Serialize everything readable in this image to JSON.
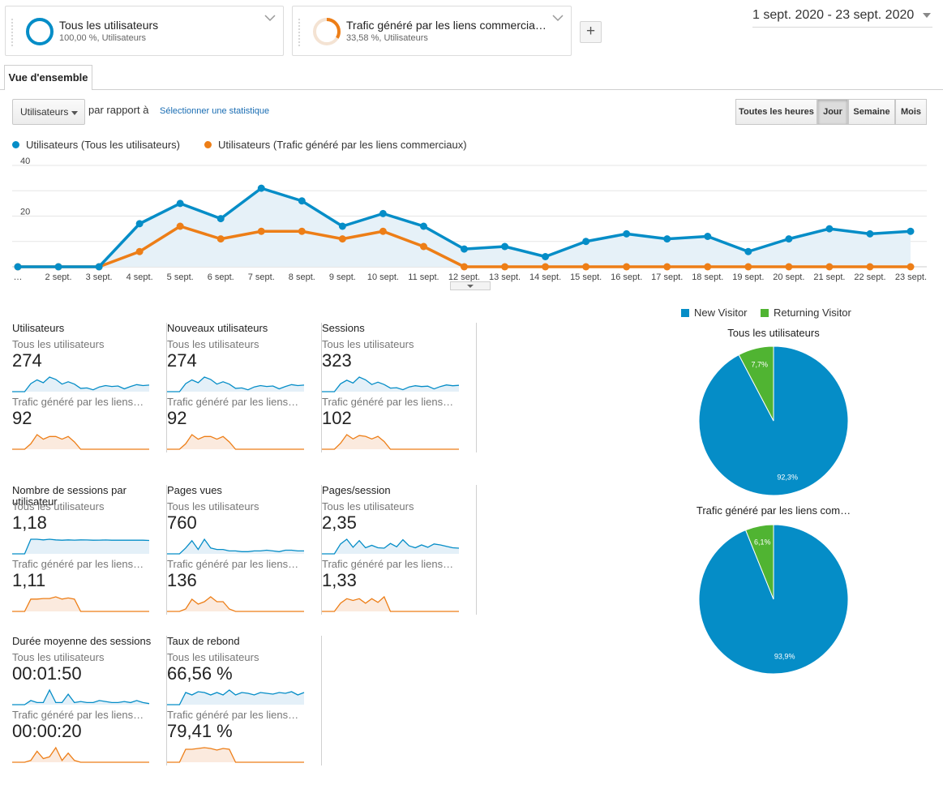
{
  "segments": [
    {
      "title": "Tous les utilisateurs",
      "subtitle": "100,00 %, Utilisateurs",
      "color": "#058dc7",
      "fraction": 1.0
    },
    {
      "title": "Trafic généré par les liens commercia…",
      "subtitle": "33,58 %, Utilisateurs",
      "color": "#ed7e17",
      "fraction": 0.3358
    }
  ],
  "add_segment_label": "+",
  "date_range": "1 sept. 2020 - 23 sept. 2020",
  "tab": {
    "label": "Vue d'ensemble"
  },
  "controls": {
    "metric": "Utilisateurs",
    "vs_label": "par rapport à",
    "select_stat": "Sélectionner une statistique",
    "granularity": [
      {
        "label": "Toutes les heures",
        "active": false
      },
      {
        "label": "Jour",
        "active": true
      },
      {
        "label": "Semaine",
        "active": false
      },
      {
        "label": "Mois",
        "active": false
      }
    ]
  },
  "colors": {
    "blue": "#058dc7",
    "orange": "#ed7e17",
    "green": "#50b432"
  },
  "chart_data": {
    "type": "line",
    "x": [
      "…",
      "2 sept.",
      "3 sept.",
      "4 sept.",
      "5 sept.",
      "6 sept.",
      "7 sept.",
      "8 sept.",
      "9 sept.",
      "10 sept.",
      "11 sept.",
      "12 sept.",
      "13 sept.",
      "14 sept.",
      "15 sept.",
      "16 sept.",
      "17 sept.",
      "18 sept.",
      "19 sept.",
      "20 sept.",
      "21 sept.",
      "22 sept.",
      "23 sept."
    ],
    "series": [
      {
        "name": "Utilisateurs (Tous les utilisateurs)",
        "color": "#058dc7",
        "values": [
          0,
          0,
          0,
          17,
          25,
          19,
          31,
          26,
          16,
          21,
          16,
          7,
          8,
          4,
          10,
          13,
          11,
          12,
          6,
          11,
          15,
          13,
          14
        ]
      },
      {
        "name": "Utilisateurs (Trafic généré par les liens commerciaux)",
        "color": "#ed7e17",
        "values": [
          0,
          0,
          0,
          6,
          16,
          11,
          14,
          14,
          11,
          14,
          8,
          0,
          0,
          0,
          0,
          0,
          0,
          0,
          0,
          0,
          0,
          0,
          0
        ]
      }
    ],
    "y_ticks": [
      "40",
      "20"
    ],
    "ylim": [
      0,
      40
    ],
    "grid": true
  },
  "scorecards": [
    {
      "metric": "Utilisateurs",
      "seg1_label": "Tous les utilisateurs",
      "seg1_value": "274",
      "seg2_label": "Trafic généré par les liens…",
      "seg2_value": "92",
      "spark1": [
        0,
        0,
        0,
        17,
        25,
        19,
        31,
        26,
        16,
        21,
        16,
        7,
        8,
        4,
        10,
        13,
        11,
        12,
        6,
        11,
        15,
        13,
        14
      ],
      "spark2": [
        0,
        0,
        0,
        6,
        16,
        11,
        14,
        14,
        11,
        14,
        8,
        0,
        0,
        0,
        0,
        0,
        0,
        0,
        0,
        0,
        0,
        0,
        0
      ]
    },
    {
      "metric": "Nouveaux utilisateurs",
      "seg1_label": "Tous les utilisateurs",
      "seg1_value": "274",
      "seg2_label": "Trafic généré par les liens…",
      "seg2_value": "92",
      "spark1": [
        0,
        0,
        0,
        17,
        25,
        19,
        31,
        26,
        16,
        21,
        16,
        7,
        8,
        4,
        10,
        13,
        11,
        12,
        6,
        11,
        15,
        13,
        14
      ],
      "spark2": [
        0,
        0,
        0,
        6,
        16,
        11,
        14,
        14,
        11,
        14,
        8,
        0,
        0,
        0,
        0,
        0,
        0,
        0,
        0,
        0,
        0,
        0,
        0
      ]
    },
    {
      "metric": "Sessions",
      "seg1_label": "Tous les utilisateurs",
      "seg1_value": "323",
      "seg2_label": "Trafic généré par les liens…",
      "seg2_value": "102",
      "spark1": [
        0,
        0,
        0,
        20,
        29,
        22,
        37,
        30,
        18,
        24,
        18,
        9,
        10,
        5,
        12,
        15,
        13,
        14,
        7,
        13,
        17,
        15,
        16
      ],
      "spark2": [
        0,
        0,
        0,
        7,
        17,
        12,
        16,
        15,
        12,
        15,
        9,
        0,
        0,
        0,
        0,
        0,
        0,
        0,
        0,
        0,
        0,
        0,
        0
      ]
    },
    {
      "metric": "Nombre de sessions par utilisateur",
      "seg1_label": "Tous les utilisateurs",
      "seg1_value": "1,18",
      "seg2_label": "Trafic généré par les liens…",
      "seg2_value": "1,11",
      "spark1": [
        0,
        0,
        0,
        1.2,
        1.2,
        1.15,
        1.2,
        1.15,
        1.12,
        1.15,
        1.13,
        1.15,
        1.14,
        1.12,
        1.13,
        1.14,
        1.12,
        1.13,
        1.12,
        1.13,
        1.12,
        1.12,
        1.1
      ],
      "spark2": [
        0,
        0,
        0,
        1.1,
        1.1,
        1.15,
        1.15,
        1.3,
        1.1,
        1.2,
        1.1,
        0,
        0,
        0,
        0,
        0,
        0,
        0,
        0,
        0,
        0,
        0,
        0
      ]
    },
    {
      "metric": "Pages vues",
      "seg1_label": "Tous les utilisateurs",
      "seg1_value": "760",
      "seg2_label": "Trafic généré par les liens…",
      "seg2_value": "136",
      "spark1": [
        0,
        0,
        0,
        40,
        90,
        30,
        100,
        40,
        30,
        30,
        20,
        20,
        15,
        15,
        20,
        20,
        25,
        20,
        15,
        25,
        25,
        20,
        20
      ],
      "spark2": [
        0,
        0,
        0,
        5,
        25,
        15,
        20,
        30,
        20,
        20,
        5,
        0,
        0,
        0,
        0,
        0,
        0,
        0,
        0,
        0,
        0,
        0,
        0
      ]
    },
    {
      "metric": "Pages/session",
      "seg1_label": "Tous les utilisateurs",
      "seg1_value": "2,35",
      "seg2_label": "Trafic généré par les liens…",
      "seg2_value": "1,33",
      "spark1": [
        0,
        0,
        0,
        2.1,
        3.1,
        1.4,
        2.8,
        1.3,
        1.8,
        1.3,
        1.2,
        2.2,
        1.5,
        3,
        1.7,
        1.3,
        1.9,
        1.4,
        2.1,
        1.9,
        1.6,
        1.3,
        1.2
      ],
      "spark2": [
        0,
        0,
        0,
        0.9,
        1.4,
        1.2,
        1.4,
        0.9,
        1.4,
        1.0,
        1.6,
        0,
        0,
        0,
        0,
        0,
        0,
        0,
        0,
        0,
        0,
        0,
        0
      ]
    },
    {
      "metric": "Durée moyenne des sessions",
      "seg1_label": "Tous les utilisateurs",
      "seg1_value": "00:01:50",
      "seg2_label": "Trafic généré par les liens…",
      "seg2_value": "00:00:20",
      "spark1": [
        0,
        0,
        0,
        20,
        10,
        10,
        70,
        10,
        10,
        50,
        10,
        15,
        10,
        10,
        20,
        15,
        10,
        10,
        15,
        10,
        20,
        10,
        5
      ],
      "spark2": [
        0,
        0,
        0,
        5,
        30,
        10,
        15,
        40,
        5,
        25,
        5,
        0,
        0,
        0,
        0,
        0,
        0,
        0,
        0,
        0,
        0,
        0,
        0
      ]
    },
    {
      "metric": "Taux de rebond",
      "seg1_label": "Tous les utilisateurs",
      "seg1_value": "66,56 %",
      "seg2_label": "Trafic généré par les liens…",
      "seg2_value": "79,41 %",
      "spark1": [
        0,
        0,
        0,
        75,
        60,
        80,
        75,
        60,
        75,
        60,
        90,
        60,
        75,
        70,
        60,
        75,
        70,
        65,
        75,
        70,
        80,
        60,
        75
      ],
      "spark2": [
        0,
        0,
        0,
        80,
        80,
        85,
        90,
        85,
        75,
        85,
        80,
        0,
        0,
        0,
        0,
        0,
        0,
        0,
        0,
        0,
        0,
        0,
        0
      ]
    }
  ],
  "pie_legend": [
    {
      "label": "New Visitor",
      "color": "#058dc7"
    },
    {
      "label": "Returning Visitor",
      "color": "#50b432"
    }
  ],
  "pies": [
    {
      "title": "Tous les utilisateurs",
      "slices": [
        {
          "label": "New Visitor",
          "value": 92.3,
          "text": "92,3%"
        },
        {
          "label": "Returning Visitor",
          "value": 7.7,
          "text": "7,7%"
        }
      ]
    },
    {
      "title": "Trafic généré par les liens com…",
      "slices": [
        {
          "label": "New Visitor",
          "value": 93.9,
          "text": "93,9%"
        },
        {
          "label": "Returning Visitor",
          "value": 6.1,
          "text": "6,1%"
        }
      ]
    }
  ]
}
